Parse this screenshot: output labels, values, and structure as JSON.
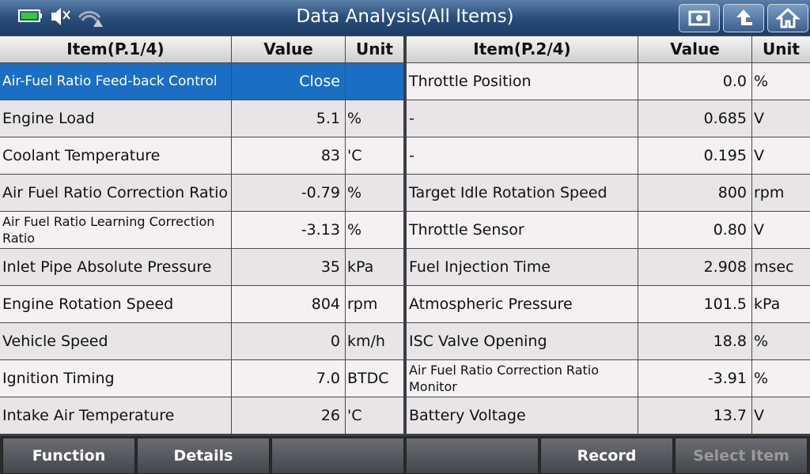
{
  "header": {
    "title": "Data Analysis(All Items)"
  },
  "tables": [
    {
      "headers": [
        "Item(P.1/4)",
        "Value",
        "Unit"
      ],
      "rows": [
        [
          "Air-Fuel Ratio Feed-back Control",
          "Close"
        ],
        [
          "Engine Load",
          "5.1",
          "%"
        ],
        [
          "Coolant Temperature",
          "83",
          "'C"
        ],
        [
          "Air Fuel Ratio Correction Ratio",
          "-0.79",
          "%"
        ],
        [
          "Air Fuel Ratio Learning Correction Ratio",
          "-3.13",
          "%"
        ],
        [
          "Inlet Pipe Absolute Pressure",
          "35",
          "kPa"
        ],
        [
          "Engine Rotation Speed",
          "804",
          "rpm"
        ],
        [
          "Vehicle Speed",
          "0",
          "km/h"
        ],
        [
          "Ignition Timing",
          "7.0",
          "BTDC"
        ],
        [
          "Intake Air Temperature",
          "26",
          "'C"
        ]
      ]
    },
    {
      "headers": [
        "Item(P.2/4)",
        "Value",
        "Unit"
      ],
      "rows": [
        [
          "Throttle Position",
          "0.0",
          "%"
        ],
        [
          "-",
          "0.685",
          "V"
        ],
        [
          "-",
          "0.195",
          "V"
        ],
        [
          "Target Idle Rotation Speed",
          "800",
          "rpm"
        ],
        [
          "Throttle Sensor",
          "0.80",
          "V"
        ],
        [
          "Fuel Injection Time",
          "2.908",
          "msec"
        ],
        [
          "Atmospheric Pressure",
          "101.5",
          "kPa"
        ],
        [
          "ISC Valve Opening",
          "18.8",
          "%"
        ],
        [
          "Air Fuel Ratio Correction Ratio Monitor",
          "-3.91",
          "%"
        ],
        [
          "Battery Voltage",
          "13.7",
          "V"
        ]
      ]
    }
  ],
  "footer": {
    "buttons": [
      "Function",
      "Details",
      "Record",
      "Select Item"
    ]
  }
}
